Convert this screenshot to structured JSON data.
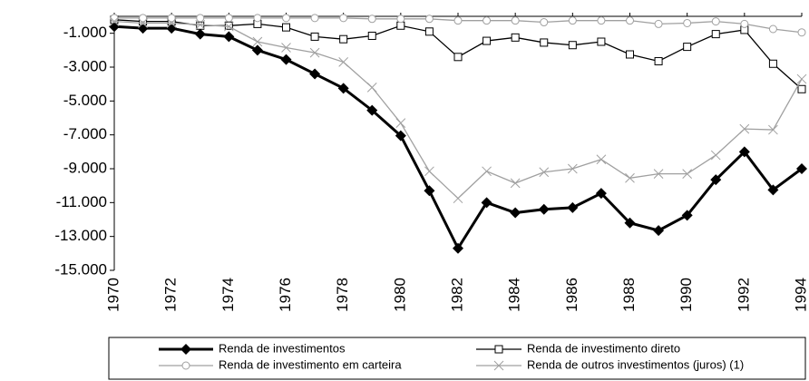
{
  "chart_data": {
    "type": "line",
    "x": [
      1970,
      1971,
      1972,
      1973,
      1974,
      1975,
      1976,
      1977,
      1978,
      1979,
      1980,
      1981,
      1982,
      1983,
      1984,
      1985,
      1986,
      1987,
      1988,
      1989,
      1990,
      1991,
      1992,
      1993,
      1994
    ],
    "xlim": [
      1970,
      1994
    ],
    "xticks": [
      1970,
      1972,
      1974,
      1976,
      1978,
      1980,
      1982,
      1984,
      1986,
      1988,
      1990,
      1992,
      1994
    ],
    "ylim": [
      -15000,
      0
    ],
    "yticks": [
      {
        "value": -1000,
        "label": "-1.000"
      },
      {
        "value": -3000,
        "label": "-3.000"
      },
      {
        "value": -5000,
        "label": "-5.000"
      },
      {
        "value": -7000,
        "label": "-7.000"
      },
      {
        "value": -9000,
        "label": "-9.000"
      },
      {
        "value": -11000,
        "label": "-11.000"
      },
      {
        "value": -13000,
        "label": "-13.000"
      },
      {
        "value": -15000,
        "label": "-15.000"
      }
    ],
    "grid": false,
    "legend": "bottom",
    "series": [
      {
        "name": "Renda de investimentos",
        "color": "#000000",
        "marker": "diamond",
        "values": [
          -600,
          -700,
          -700,
          -1050,
          -1200,
          -2000,
          -2550,
          -3400,
          -4250,
          -5550,
          -7050,
          -10300,
          -13700,
          -11000,
          -11600,
          -11400,
          -11300,
          -10450,
          -12200,
          -12650,
          -11750,
          -9650,
          -8000,
          -10250,
          -9000
        ]
      },
      {
        "name": "Renda de investimento direto",
        "color": "#000000",
        "marker": "square",
        "values": [
          -200,
          -300,
          -300,
          -550,
          -550,
          -450,
          -650,
          -1200,
          -1350,
          -1150,
          -550,
          -900,
          -2400,
          -1450,
          -1250,
          -1550,
          -1700,
          -1500,
          -2250,
          -2650,
          -1800,
          -1050,
          -800,
          -2800,
          -4300
        ]
      },
      {
        "name": "Renda de investimento em carteira",
        "color": "#a0a0a0",
        "marker": "circle",
        "values": [
          -100,
          -100,
          -100,
          -100,
          -100,
          -100,
          -100,
          -100,
          -100,
          -150,
          -150,
          -150,
          -250,
          -250,
          -250,
          -350,
          -250,
          -250,
          -250,
          -450,
          -400,
          -300,
          -450,
          -750,
          -950
        ]
      },
      {
        "name": "Renda de outros investimentos (juros) (1)",
        "color": "#a0a0a0",
        "marker": "x",
        "values": [
          -300,
          -400,
          -400,
          -500,
          -600,
          -1500,
          -1850,
          -2150,
          -2700,
          -4200,
          -6300,
          -9150,
          -10750,
          -9150,
          -9850,
          -9200,
          -9000,
          -8450,
          -9550,
          -9300,
          -9300,
          -8200,
          -6650,
          -6700,
          -3700
        ]
      }
    ]
  }
}
